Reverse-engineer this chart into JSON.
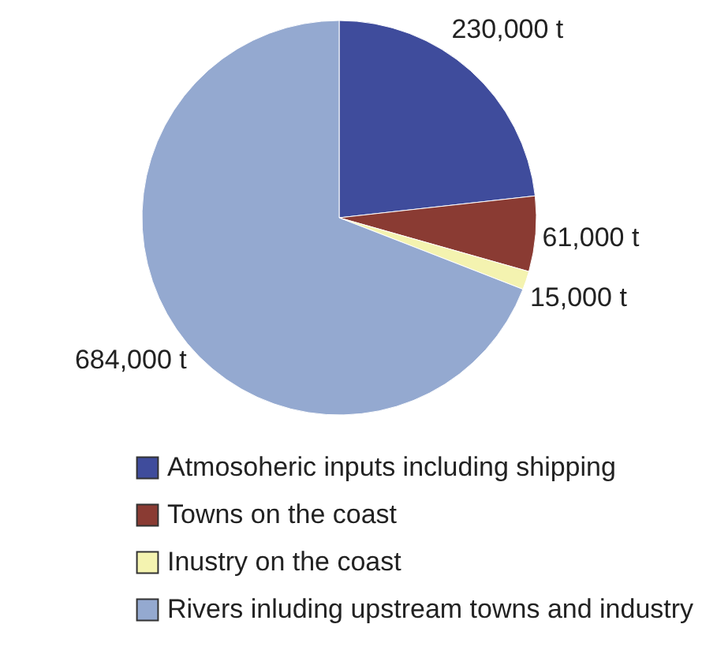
{
  "chart_data": {
    "type": "pie",
    "categories": [
      "Atmosoheric inputs including shipping",
      "Towns on the coast",
      "Inustry on the coast",
      "Rivers inluding upstream towns and industry"
    ],
    "values": [
      230000,
      61000,
      15000,
      684000
    ],
    "colors": [
      "#3f4c9c",
      "#8a3b33",
      "#f4f3b0",
      "#94a9d0"
    ],
    "value_labels": [
      "230,000 t",
      "61,000 t",
      "15,000 t",
      "684,000 t"
    ],
    "legend": "bottom"
  }
}
